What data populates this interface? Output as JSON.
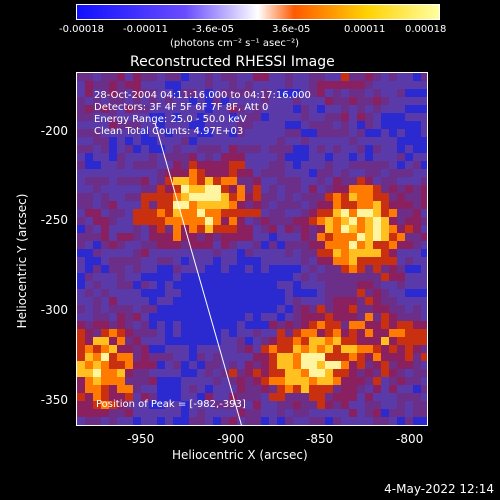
{
  "colorbar": {
    "ticks": [
      "-0.00018",
      "-0.00011",
      "-3.6e-05",
      "3.6e-05",
      "0.00011",
      "0.00018"
    ],
    "units": "(photons cm⁻² s⁻¹ asec⁻²)"
  },
  "title": "Reconstructed RHESSI Image",
  "info_lines": [
    "28-Oct-2004 04:11:16.000 to 04:17:16.000",
    "Detectors: 3F 4F 5F 6F 7F 8F, Att 0",
    "Energy Range: 25.0 - 50.0 keV",
    "Clean    Total Counts: 4.97E+03"
  ],
  "peak_text": "Position of Peak = [-982,-393]",
  "x_axis": {
    "label": "Heliocentric X (arcsec)",
    "ticks": [
      "-950",
      "-900",
      "-850",
      "-800"
    ]
  },
  "y_axis": {
    "label": "Heliocentric Y (arcsec)",
    "ticks": [
      "-200",
      "-250",
      "-300",
      "-350"
    ]
  },
  "timestamp": "4-May-2022 12:14"
}
